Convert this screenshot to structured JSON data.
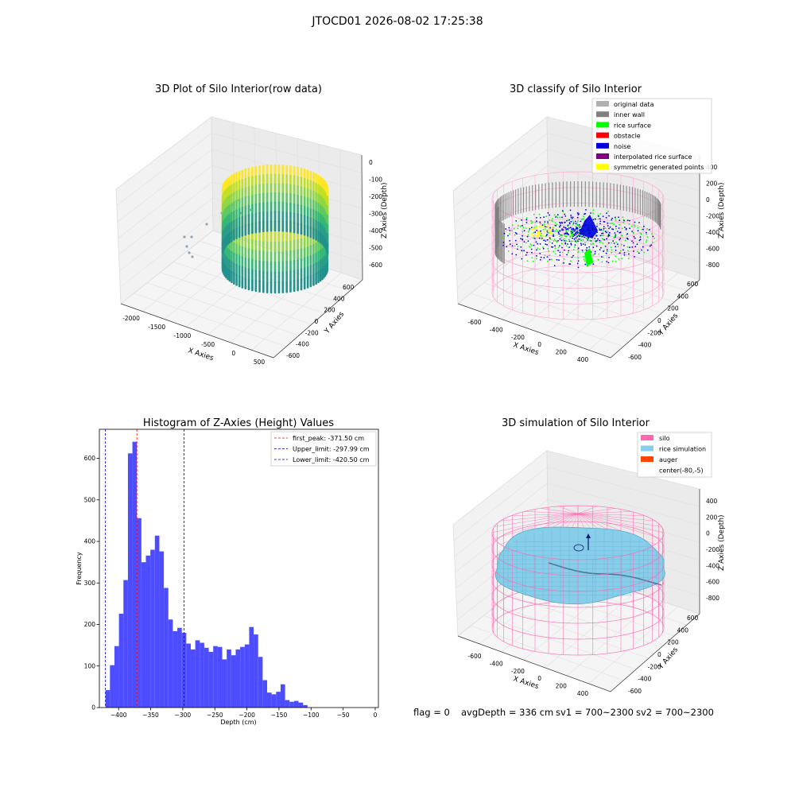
{
  "suptitle": "JTOCD01 2026-08-02 17:25:38",
  "footer": {
    "flag": "flag = 0",
    "avg": "avgDepth = 336 cm",
    "sv1": "sv1 = 700~2300",
    "sv2": "sv2 = 700~2300"
  },
  "colors": {
    "hist_bar": "#4d4dff",
    "peak_line": "#ff0000",
    "limit_line": "#0000cc",
    "silo": "#ff69b4",
    "rice_sim": "#87ceeb",
    "auger": "#ff4500",
    "gray_data": "#b0b0b0",
    "inner_wall": "#808080",
    "rice_surface": "#00ff00",
    "obstacle": "#ff0000",
    "noise": "#0000dd",
    "interp": "#800080",
    "sym": "#ffff00"
  },
  "panels": {
    "raw": {
      "title": "3D Plot of Silo Interior(row data)",
      "xlabel": "X Axies",
      "ylabel": "Y Axies",
      "zlabel": "Z Axies (Depth)",
      "xticks": [
        "-2000",
        "-1500",
        "-1000",
        "-500",
        "0",
        "500"
      ],
      "yticks": [
        "600",
        "400",
        "200",
        "0",
        "-200",
        "-400",
        "-600"
      ],
      "zticks": [
        "0",
        "-100",
        "-200",
        "-300",
        "-400",
        "-500",
        "-600"
      ]
    },
    "classify": {
      "title": "3D classify of Silo Interior",
      "xlabel": "X Axies",
      "ylabel": "Y Axies",
      "zlabel": "Z Axies (Depth)",
      "xticks": [
        "-600",
        "-400",
        "-200",
        "0",
        "200",
        "400"
      ],
      "yticks": [
        "600",
        "400",
        "200",
        "0",
        "-200",
        "-400",
        "-600"
      ],
      "zticks": [
        "400",
        "200",
        "0",
        "-200",
        "-400",
        "-600",
        "-800"
      ],
      "legend": [
        "original data",
        "inner wall",
        "rice surface",
        "obstacle",
        "noise",
        "interpolated rice surface",
        "symmetric generated points"
      ]
    },
    "sim": {
      "title": "3D simulation of Silo Interior",
      "xlabel": "X Axies",
      "ylabel": "Y Axies",
      "zlabel": "Z Axies (Depth)",
      "xticks": [
        "-600",
        "-400",
        "-200",
        "0",
        "200",
        "400"
      ],
      "yticks": [
        "600",
        "400",
        "200",
        "0",
        "-200",
        "-400",
        "-600"
      ],
      "zticks": [
        "400",
        "200",
        "0",
        "-200",
        "-400",
        "-600",
        "-800"
      ],
      "legend": [
        "silo",
        "rice simulation",
        "auger",
        "center(-80,-5)"
      ]
    }
  },
  "chart_data": {
    "type": "bar",
    "title": "Histogram of Z-Axies (Height) Values",
    "xlabel": "Depth (cm)",
    "ylabel": "Frequency",
    "xlim": [
      -430,
      5
    ],
    "ylim": [
      0,
      670
    ],
    "xticks": [
      -400,
      -350,
      -300,
      -250,
      -200,
      -150,
      -100,
      -50,
      0
    ],
    "yticks": [
      0,
      100,
      200,
      300,
      400,
      500,
      600
    ],
    "bin_start": -420.5,
    "bin_width": 7,
    "counts": [
      42,
      102,
      148,
      226,
      307,
      612,
      640,
      456,
      350,
      366,
      380,
      414,
      376,
      288,
      212,
      184,
      192,
      180,
      154,
      140,
      162,
      156,
      144,
      134,
      148,
      146,
      116,
      140,
      126,
      140,
      146,
      152,
      194,
      176,
      122,
      66,
      36,
      32,
      38,
      56,
      18,
      14,
      16,
      12,
      6
    ],
    "vlines": [
      {
        "label": "first_peak: -371.50 cm",
        "x": -371.5,
        "color": "red"
      },
      {
        "label": "Upper_limit: -297.99 cm",
        "x": -297.99,
        "color": "blue"
      },
      {
        "label": "Lower_limit: -420.50 cm",
        "x": -420.5,
        "color": "blue"
      }
    ],
    "legend_position": "upper right"
  }
}
